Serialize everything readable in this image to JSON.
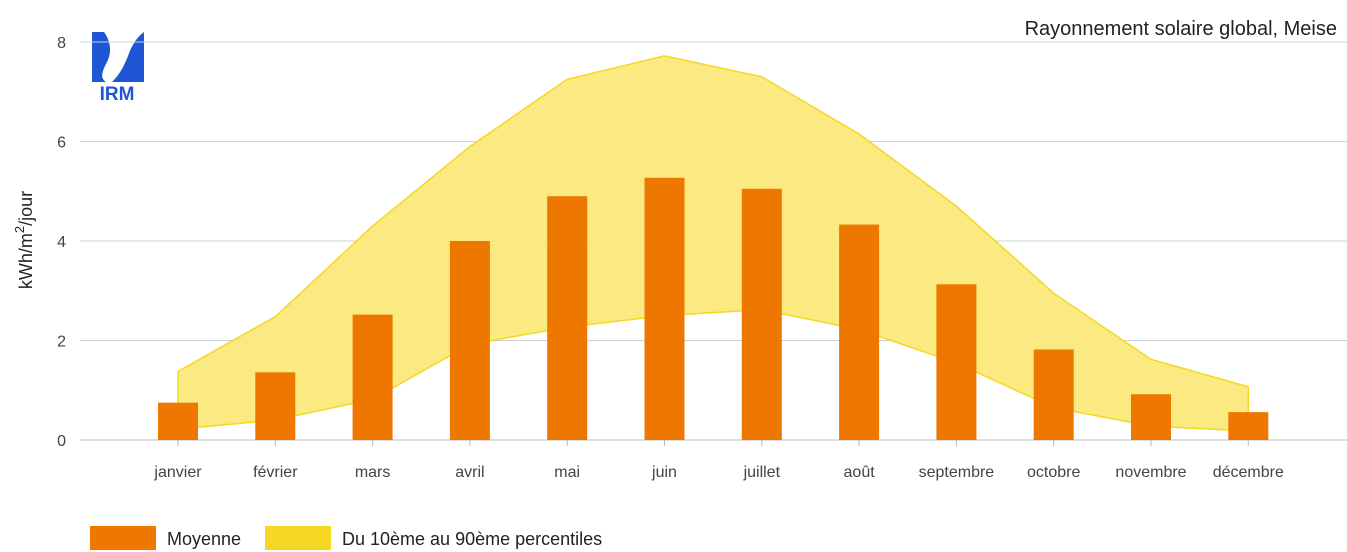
{
  "chart_data": {
    "type": "bar",
    "title": "Rayonnement solaire global, Meise",
    "ylabel": "kWh/m²/jour",
    "ylabel_parts": {
      "before": "kWh/m",
      "sup": "2",
      "after": "/jour"
    },
    "xlabel": "",
    "ylim": [
      0,
      8
    ],
    "yticks": [
      0,
      2,
      4,
      6,
      8
    ],
    "grid": true,
    "legend_position": "bottom-left",
    "categories": [
      "janvier",
      "février",
      "mars",
      "avril",
      "mai",
      "juin",
      "juillet",
      "août",
      "septembre",
      "octobre",
      "novembre",
      "décembre"
    ],
    "series": [
      {
        "name": "Moyenne",
        "type": "bar",
        "color": "#ee7700",
        "values": [
          0.75,
          1.36,
          2.52,
          4.0,
          4.9,
          5.27,
          5.05,
          4.33,
          3.13,
          1.82,
          0.92,
          0.56
        ]
      },
      {
        "name": "Du 10ème au 90ème percentiles",
        "type": "area-range",
        "color": "#f6d722",
        "fill_color": "#fbe97a",
        "low": [
          0.22,
          0.4,
          0.82,
          1.92,
          2.27,
          2.5,
          2.62,
          2.22,
          1.55,
          0.65,
          0.28,
          0.18
        ],
        "high": [
          1.38,
          2.48,
          4.3,
          5.9,
          7.25,
          7.72,
          7.3,
          6.15,
          4.7,
          2.95,
          1.62,
          1.07
        ]
      }
    ]
  },
  "logo": {
    "text": "IRM",
    "color": "#1f56d6"
  }
}
